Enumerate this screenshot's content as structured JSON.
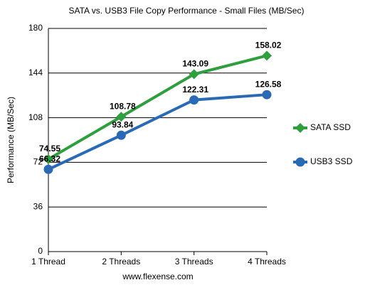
{
  "chart_data": {
    "type": "line",
    "title": "SATA vs. USB3 File Copy Performance - Small Files (MB/Sec)",
    "x_label": "www.flexense.com",
    "y_label": "Performance (MB/Sec)",
    "categories": [
      "1 Thread",
      "2 Threads",
      "3 Threads",
      "4 Threads"
    ],
    "series": [
      {
        "name": "SATA SSD",
        "color": "#2e9e3e",
        "marker": "diamond",
        "values": [
          74.55,
          108.78,
          143.09,
          158.02
        ]
      },
      {
        "name": "USB3 SSD",
        "color": "#2a6ab5",
        "marker": "circle",
        "values": [
          66.32,
          93.84,
          122.31,
          126.58
        ]
      }
    ],
    "ylim": [
      0,
      180
    ],
    "yticks": [
      0,
      36,
      72,
      108,
      144,
      180
    ],
    "grid": true,
    "legend": "right"
  }
}
